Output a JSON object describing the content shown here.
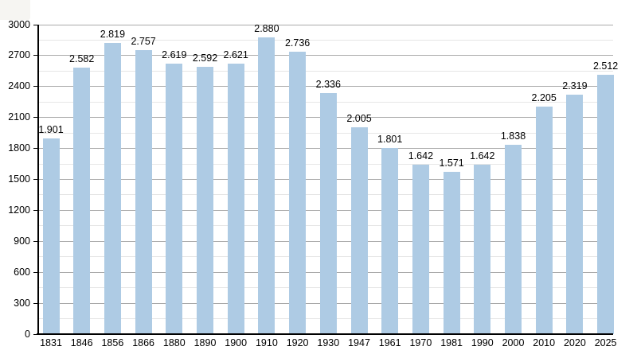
{
  "chart_data": {
    "type": "bar",
    "title": "",
    "xlabel": "",
    "ylabel": "",
    "categories": [
      "1831",
      "1846",
      "1856",
      "1866",
      "1880",
      "1890",
      "1900",
      "1910",
      "1920",
      "1930",
      "1947",
      "1961",
      "1970",
      "1981",
      "1990",
      "2000",
      "2010",
      "2020",
      "2025"
    ],
    "values": [
      1901,
      2582,
      2819,
      2757,
      2619,
      2592,
      2621,
      2880,
      2736,
      2336,
      2005,
      1801,
      1642,
      1571,
      1642,
      1838,
      2205,
      2319,
      2512
    ],
    "value_labels": [
      "1.901",
      "2.582",
      "2.819",
      "2.757",
      "2.619",
      "2.592",
      "2.621",
      "2.880",
      "2.736",
      "2.336",
      "2.005",
      "1.801",
      "1.642",
      "1.571",
      "1.642",
      "1.838",
      "2.205",
      "2.319",
      "2.512"
    ],
    "ylim": [
      0,
      3000
    ],
    "y_major_step": 300,
    "y_minor_step": 150,
    "y_tick_labels": [
      "0",
      "300",
      "600",
      "900",
      "1200",
      "1500",
      "1800",
      "2100",
      "2400",
      "2700",
      "3000"
    ],
    "grid": "horizontal major and minor gridlines, on",
    "legend": "none",
    "colors": {
      "bar": "#aecbe4",
      "major_gridline": "#a9a9a9",
      "minor_gridline": "#e6e6e6",
      "axis": "#000000",
      "label_text": "#000000",
      "background": "#ffffff",
      "corner_fragment": "#f6f5f2"
    }
  }
}
